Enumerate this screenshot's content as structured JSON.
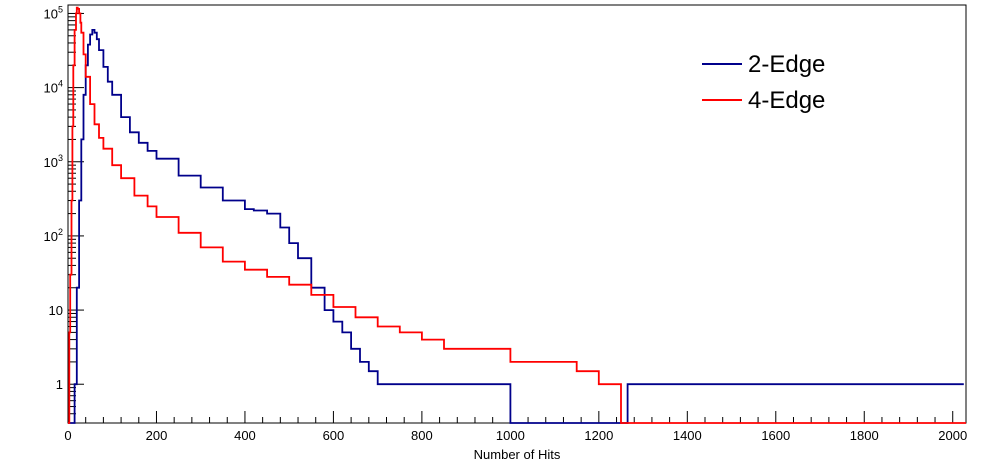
{
  "chart_data": {
    "type": "line",
    "title": "",
    "xlabel": "Number of Hits",
    "ylabel": "",
    "xlim": [
      0,
      2030
    ],
    "ylim": [
      0.3,
      130000
    ],
    "y_scale": "log",
    "grid": false,
    "legend_position": "top-right",
    "x_ticks": [
      "0",
      "200",
      "400",
      "600",
      "800",
      "1000",
      "1200",
      "1400",
      "1600",
      "1800",
      "2000"
    ],
    "y_ticks": [
      "1",
      "10",
      "10^2",
      "10^3",
      "10^4",
      "10^5"
    ],
    "series": [
      {
        "name": "2-Edge",
        "color": "#00008b",
        "x": [
          0,
          10,
          15,
          20,
          25,
          30,
          35,
          40,
          45,
          50,
          55,
          60,
          65,
          70,
          80,
          90,
          100,
          120,
          140,
          160,
          180,
          200,
          250,
          300,
          350,
          400,
          420,
          450,
          480,
          500,
          520,
          550,
          580,
          600,
          620,
          640,
          660,
          680,
          700,
          750,
          800,
          850,
          900,
          950,
          1000,
          1050,
          1100,
          1150,
          1200,
          1265,
          1350,
          1850,
          2025
        ],
        "y": [
          0.3,
          0.3,
          1,
          20,
          300,
          2000,
          8000,
          20000,
          38000,
          52000,
          60000,
          55000,
          45000,
          32000,
          19000,
          12000,
          8000,
          4000,
          2500,
          1800,
          1400,
          1100,
          650,
          450,
          300,
          230,
          220,
          200,
          130,
          80,
          50,
          20,
          10,
          7,
          5,
          3,
          2,
          1.5,
          1,
          1,
          1,
          1,
          1,
          1,
          0.3,
          0.3,
          0.3,
          0.3,
          0.3,
          1,
          1,
          1,
          1
        ]
      },
      {
        "name": "4-Edge",
        "color": "#ff0000",
        "x": [
          0,
          3,
          5,
          8,
          10,
          12,
          15,
          18,
          20,
          22,
          25,
          28,
          30,
          35,
          40,
          50,
          60,
          70,
          80,
          100,
          120,
          150,
          180,
          200,
          250,
          300,
          350,
          400,
          450,
          500,
          550,
          600,
          650,
          700,
          750,
          800,
          850,
          900,
          950,
          1000,
          1050,
          1100,
          1150,
          1200,
          1250,
          1300,
          2030
        ],
        "y": [
          0.3,
          5,
          30,
          300,
          3000,
          20000,
          60000,
          100000,
          120000,
          115000,
          100000,
          75000,
          55000,
          28000,
          14000,
          6000,
          3200,
          2100,
          1500,
          900,
          600,
          350,
          250,
          180,
          110,
          70,
          45,
          35,
          28,
          22,
          16,
          11,
          8,
          6,
          5,
          4,
          3,
          3,
          3,
          2,
          2,
          2,
          1.5,
          1,
          0.3,
          0.3,
          0.3
        ]
      }
    ]
  }
}
